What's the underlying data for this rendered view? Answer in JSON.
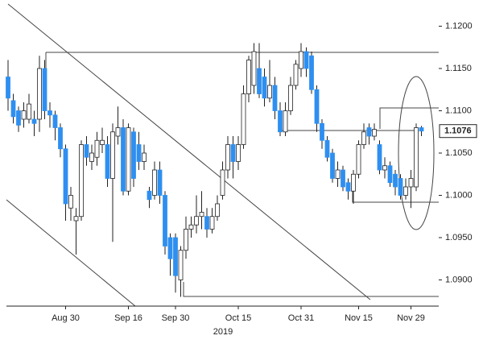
{
  "chart_data": {
    "type": "candlestick",
    "categories": [
      null,
      null,
      null,
      null,
      null,
      null,
      null,
      null,
      null,
      null,
      null,
      "Aug 30",
      null,
      null,
      null,
      null,
      null,
      null,
      null,
      null,
      null,
      null,
      null,
      "Sep 16",
      null,
      null,
      null,
      null,
      null,
      null,
      null,
      null,
      "Sep 30",
      null,
      null,
      null,
      null,
      null,
      null,
      null,
      null,
      null,
      null,
      null,
      "Oct 15",
      null,
      null,
      null,
      null,
      null,
      null,
      null,
      null,
      null,
      null,
      null,
      "Oct 31",
      null,
      null,
      null,
      null,
      null,
      null,
      null,
      null,
      null,
      null,
      "Nov 15",
      null,
      null,
      null,
      null,
      null,
      null,
      null,
      null,
      null,
      "Nov 29",
      null,
      null
    ],
    "x_year_label": "2019",
    "open": [
      1.114,
      1.1112,
      1.11,
      1.109,
      1.109,
      1.109,
      1.109,
      1.115,
      1.11,
      1.1095,
      1.108,
      1.1055,
      1.0985,
      1.097,
      1.0975,
      1.106,
      1.104,
      1.1045,
      1.106,
      1.106,
      1.102,
      1.107,
      1.108,
      1.1005,
      1.1075,
      1.106,
      1.104,
      1.1005,
      1.1,
      1.103,
      1.1,
      1.095,
      1.095,
      1.09,
      1.0935,
      1.096,
      1.0965,
      1.0975,
      1.0975,
      1.096,
      1.0975,
      1.1,
      1.103,
      1.106,
      1.104,
      1.106,
      1.112,
      1.113,
      1.115,
      1.114,
      1.1115,
      1.113,
      1.11,
      1.1075,
      1.11,
      1.113,
      1.115,
      1.117,
      1.1165,
      1.1125,
      1.1085,
      1.1065,
      1.105,
      1.102,
      1.103,
      1.1015,
      1.1005,
      1.1025,
      1.106,
      1.108,
      1.107,
      1.106,
      1.103,
      1.1035,
      1.1025,
      1.102,
      1.1,
      1.101,
      1.101,
      1.108
    ],
    "high": [
      1.116,
      1.112,
      1.1105,
      1.111,
      1.112,
      1.11,
      1.1165,
      1.116,
      1.111,
      1.11,
      1.1085,
      1.106,
      1.101,
      1.0985,
      1.1065,
      1.107,
      1.106,
      1.1075,
      1.108,
      1.107,
      1.1085,
      1.1105,
      1.109,
      1.1085,
      1.108,
      1.1075,
      1.106,
      1.101,
      1.104,
      1.104,
      1.1005,
      1.0955,
      1.0955,
      1.094,
      1.0975,
      1.0975,
      1.1,
      1.1005,
      1.0985,
      1.0985,
      1.1,
      1.104,
      1.107,
      1.107,
      1.107,
      1.113,
      1.1165,
      1.118,
      1.118,
      1.115,
      1.116,
      1.114,
      1.111,
      1.111,
      1.114,
      1.116,
      1.118,
      1.1175,
      1.117,
      1.113,
      1.109,
      1.107,
      1.1055,
      1.104,
      1.1035,
      1.102,
      1.103,
      1.1065,
      1.1085,
      1.1085,
      1.1085,
      1.1065,
      1.1045,
      1.104,
      1.103,
      1.1025,
      1.102,
      1.103,
      1.1085,
      1.1082
    ],
    "low": [
      1.11,
      1.1085,
      1.1075,
      1.108,
      1.1085,
      1.107,
      1.1075,
      1.109,
      1.108,
      1.1065,
      1.1045,
      1.097,
      1.097,
      1.093,
      1.097,
      1.1035,
      1.103,
      1.1035,
      1.105,
      1.101,
      1.0945,
      1.106,
      1.1,
      1.1,
      1.101,
      1.103,
      1.103,
      1.0985,
      1.0995,
      1.099,
      1.093,
      1.0905,
      1.0885,
      1.088,
      1.0925,
      1.095,
      1.0955,
      1.096,
      1.095,
      1.0955,
      1.097,
      1.0995,
      1.102,
      1.102,
      1.103,
      1.1055,
      1.111,
      1.112,
      1.1115,
      1.1105,
      1.111,
      1.109,
      1.107,
      1.107,
      1.1095,
      1.1125,
      1.114,
      1.114,
      1.112,
      1.1075,
      1.1055,
      1.104,
      1.1015,
      1.101,
      1.1005,
      1.0995,
      1.099,
      1.102,
      1.1055,
      1.106,
      1.1065,
      1.1025,
      1.102,
      1.101,
      1.1,
      1.0995,
      1.0995,
      1.0985,
      1.1005,
      1.107
    ],
    "close": [
      1.1115,
      1.1093,
      1.1083,
      1.11,
      1.1108,
      1.1085,
      1.115,
      1.11,
      1.1095,
      1.108,
      1.1055,
      1.099,
      1.1,
      1.0975,
      1.106,
      1.1045,
      1.105,
      1.1065,
      1.1065,
      1.102,
      1.1075,
      1.108,
      1.1005,
      1.108,
      1.102,
      1.104,
      1.105,
      1.0995,
      1.103,
      1.1,
      1.094,
      1.0925,
      1.0905,
      1.0935,
      1.096,
      1.0965,
      1.0975,
      1.098,
      1.096,
      1.0975,
      1.099,
      1.103,
      1.106,
      1.104,
      1.106,
      1.112,
      1.116,
      1.117,
      1.112,
      1.1115,
      1.113,
      1.11,
      1.1075,
      1.11,
      1.113,
      1.1155,
      1.117,
      1.115,
      1.1125,
      1.1085,
      1.1065,
      1.1045,
      1.102,
      1.103,
      1.101,
      1.1005,
      1.1025,
      1.106,
      1.1075,
      1.107,
      1.1078,
      1.103,
      1.1035,
      1.1015,
      1.101,
      1.1,
      1.101,
      1.102,
      1.108,
      1.1076
    ],
    "up_color": "#ffffff",
    "down_color": "#2e8ff0",
    "edge_color": "#222222",
    "ylim": [
      1.0869,
      1.1231
    ],
    "yticks": [
      {
        "value": 1.09,
        "label": "1.0900"
      },
      {
        "value": 1.095,
        "label": "1.0950"
      },
      {
        "value": 1.1,
        "label": "1.1000"
      },
      {
        "value": 1.105,
        "label": "1.1050"
      },
      {
        "value": 1.11,
        "label": "1.1100"
      },
      {
        "value": 1.115,
        "label": "1.1150"
      },
      {
        "value": 1.12,
        "label": "1.1200"
      }
    ],
    "last_price": {
      "value": 1.1076,
      "label": "1.1076"
    }
  }
}
